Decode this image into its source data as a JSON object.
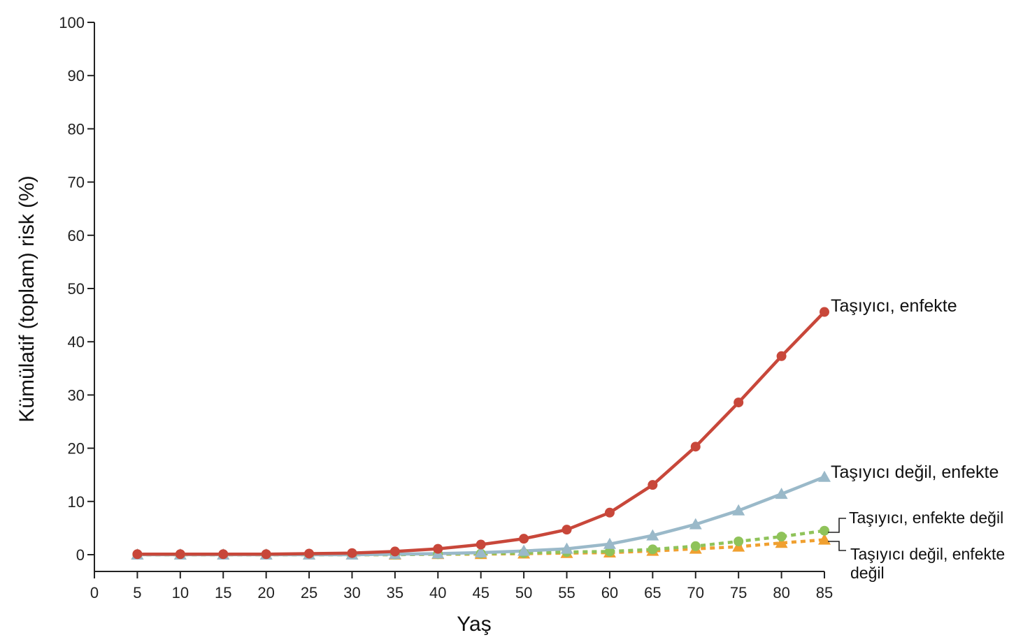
{
  "chart_data": {
    "type": "line",
    "title": "",
    "xlabel": "Yaş",
    "ylabel": "Kümülatif (toplam) risk (%)",
    "xlim": [
      0,
      85
    ],
    "ylim": [
      0,
      100
    ],
    "x_ticks": [
      0,
      5,
      10,
      15,
      20,
      25,
      30,
      35,
      40,
      45,
      50,
      55,
      60,
      65,
      70,
      75,
      80,
      85
    ],
    "y_ticks": [
      0,
      10,
      20,
      30,
      40,
      50,
      60,
      70,
      80,
      90,
      100
    ],
    "grid": false,
    "legend": "direct labels at line ends (right)",
    "x": [
      5,
      10,
      15,
      20,
      25,
      30,
      35,
      40,
      45,
      50,
      55,
      60,
      65,
      70,
      75,
      80,
      85
    ],
    "series": [
      {
        "name": "Taşıyıcı, enfekte",
        "color": "#c8473a",
        "marker": "circle",
        "line": "solid",
        "values": [
          0.1,
          0.1,
          0.1,
          0.1,
          0.2,
          0.3,
          0.6,
          1.1,
          1.9,
          3.0,
          4.7,
          7.9,
          13.1,
          20.3,
          28.6,
          37.3,
          45.6
        ]
      },
      {
        "name": "Taşıyıcı değil, enfekte",
        "color": "#9ab9c9",
        "marker": "triangle",
        "line": "solid",
        "values": [
          0,
          0,
          0,
          0,
          0,
          0,
          0.1,
          0.2,
          0.4,
          0.7,
          1.1,
          2.0,
          3.6,
          5.7,
          8.3,
          11.4,
          14.6
        ]
      },
      {
        "name": "Taşıyıcı, enfekte değil",
        "color": "#8fc35a",
        "marker": "circle",
        "line": "dotted",
        "values": [
          0,
          0,
          0,
          0,
          0,
          0,
          0,
          0.1,
          0.2,
          0.3,
          0.5,
          0.6,
          1.0,
          1.6,
          2.5,
          3.4,
          4.5
        ]
      },
      {
        "name": "Taşıyıcı değil, enfekte değil",
        "color": "#f0a030",
        "marker": "triangle",
        "line": "dotted",
        "values": [
          0,
          0,
          0,
          0,
          0,
          0,
          0,
          0.1,
          0.1,
          0.2,
          0.3,
          0.4,
          0.7,
          1.1,
          1.5,
          2.2,
          2.8
        ]
      }
    ],
    "labels": {
      "s0": "Taşıyıcı, enfekte",
      "s1": "Taşıyıcı değil, enfekte",
      "s2": "Taşıyıcı, enfekte değil",
      "s3_line1": "Taşıyıcı değil, enfekte",
      "s3_line2": "değil"
    },
    "axis_color": "#222222"
  }
}
